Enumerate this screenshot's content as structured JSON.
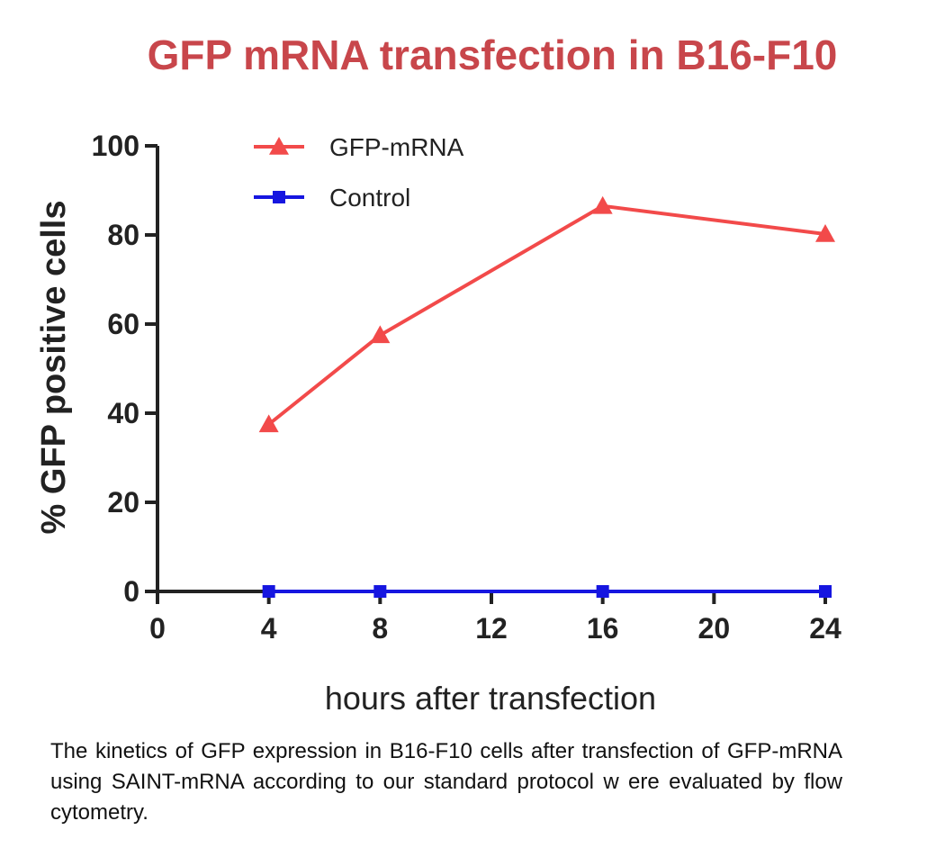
{
  "chart_data": {
    "type": "line",
    "title": "GFP mRNA transfection in B16-F10",
    "xlabel": "hours after transfection",
    "ylabel": "% GFP positive cells",
    "xlim": [
      0,
      24
    ],
    "ylim": [
      0,
      100
    ],
    "x_ticks": [
      "0",
      "4",
      "8",
      "12",
      "16",
      "20",
      "24"
    ],
    "y_ticks": [
      "0",
      "20",
      "40",
      "60",
      "80",
      "100"
    ],
    "grid": false,
    "legend_position": "top-left",
    "series": [
      {
        "name": "GFP-mRNA",
        "color": "#f24a4a",
        "marker": "triangle",
        "x": [
          4,
          8,
          16,
          24
        ],
        "y": [
          37.5,
          57.5,
          86.5,
          80.2
        ]
      },
      {
        "name": "Control",
        "color": "#1616e0",
        "marker": "square",
        "x": [
          4,
          8,
          16,
          24
        ],
        "y": [
          0,
          0,
          0,
          0
        ]
      }
    ]
  },
  "caption": "The kinetics of GFP expression in B16-F10 cells after transfection of GFP-mRNA using SAINT-mRNA according to our standard protocol w ere evaluated by flow cytometry."
}
